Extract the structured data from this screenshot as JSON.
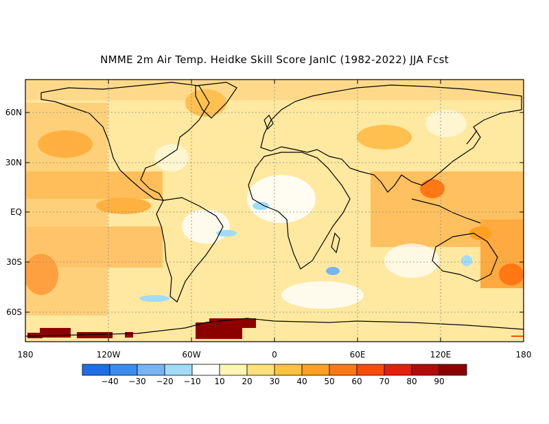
{
  "title": "NMME 2m Air Temp. Heidke Skill Score JanIC (1982-2022) JJA Fcst",
  "map": {
    "lat_labels": [
      "60N",
      "30N",
      "EQ",
      "30S",
      "60S"
    ],
    "lon_labels": [
      "180",
      "120W",
      "60W",
      "0",
      "60E",
      "120E",
      "180"
    ]
  },
  "colorbar": {
    "ticks": [
      "-40",
      "-30",
      "-20",
      "-10",
      "10",
      "20",
      "30",
      "40",
      "50",
      "60",
      "70",
      "80",
      "90"
    ],
    "colors": [
      "#1e6ee6",
      "#3c8cf0",
      "#78b4f5",
      "#a0dcf8",
      "#ffffff",
      "#fff5b4",
      "#ffe07a",
      "#ffc23c",
      "#ffa01e",
      "#ff7814",
      "#ff4a0a",
      "#e61e0a",
      "#b40a0a",
      "#8c0000"
    ]
  },
  "colors": {
    "land_outline": "#000000",
    "grid": "#888888",
    "background": "#ffffff"
  }
}
